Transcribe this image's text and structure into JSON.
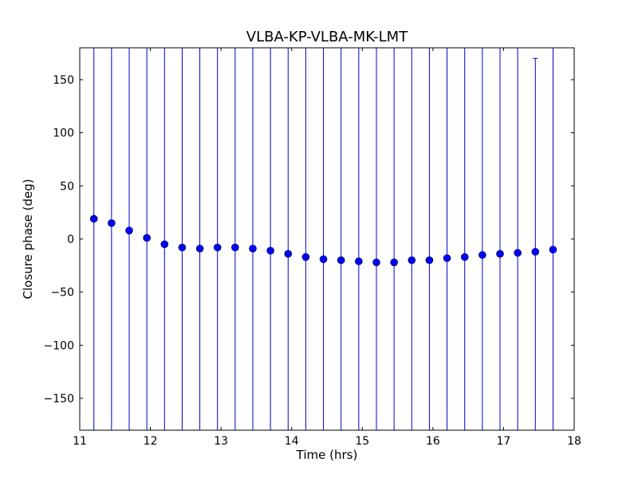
{
  "chart_data": {
    "type": "scatter",
    "title": "VLBA-KP-VLBA-MK-LMT",
    "xlabel": "Time (hrs)",
    "ylabel": "Closure phase (deg)",
    "xlim": [
      11,
      18
    ],
    "ylim": [
      -180,
      180
    ],
    "xticks": [
      11,
      12,
      13,
      14,
      15,
      16,
      17,
      18
    ],
    "yticks": [
      -150,
      -100,
      -50,
      0,
      50,
      100,
      150
    ],
    "grid": false,
    "series": [
      {
        "color": "#0000ff",
        "error_color": "#0000cc",
        "x": [
          11.2,
          11.45,
          11.7,
          11.95,
          12.2,
          12.45,
          12.7,
          12.95,
          13.2,
          13.45,
          13.7,
          13.95,
          14.2,
          14.45,
          14.7,
          14.95,
          15.2,
          15.45,
          15.7,
          15.95,
          16.2,
          16.45,
          16.7,
          16.95,
          17.2,
          17.45,
          17.7
        ],
        "y": [
          19,
          15,
          8,
          1,
          -5,
          -8,
          -9,
          -8,
          -8,
          -9,
          -11,
          -14,
          -17,
          -19,
          -20,
          -21,
          -22,
          -22,
          -20,
          -20,
          -18,
          -17,
          -15,
          -14,
          -13,
          -12,
          -10
        ],
        "err_low": [
          -180,
          -180,
          -180,
          -180,
          -180,
          -180,
          -180,
          -180,
          -180,
          -180,
          -180,
          -180,
          -180,
          -180,
          -180,
          -180,
          -180,
          -180,
          -180,
          -180,
          -180,
          -180,
          -180,
          -180,
          -180,
          -180,
          -180
        ],
        "err_high": [
          180,
          180,
          180,
          180,
          180,
          180,
          180,
          180,
          180,
          180,
          180,
          180,
          180,
          180,
          180,
          180,
          180,
          180,
          180,
          180,
          180,
          180,
          180,
          180,
          180,
          170,
          180
        ]
      }
    ]
  }
}
